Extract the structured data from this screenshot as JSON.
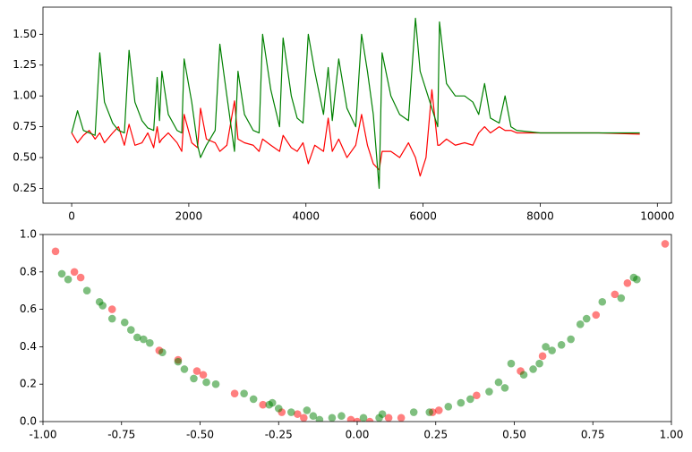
{
  "chart_data": [
    {
      "type": "line",
      "x": [
        0,
        100,
        200,
        300,
        400,
        480,
        560,
        700,
        800,
        900,
        980,
        1080,
        1200,
        1300,
        1400,
        1460,
        1500,
        1540,
        1650,
        1800,
        1880,
        1920,
        2050,
        2150,
        2200,
        2300,
        2450,
        2530,
        2650,
        2780,
        2840,
        2950,
        3100,
        3200,
        3260,
        3400,
        3550,
        3610,
        3750,
        3850,
        3950,
        4040,
        4150,
        4300,
        4380,
        4450,
        4560,
        4700,
        4850,
        4950,
        5050,
        5150,
        5250,
        5300,
        5450,
        5600,
        5750,
        5870,
        5950,
        6050,
        6150,
        6250,
        6280,
        6400,
        6550,
        6710,
        6850,
        6950,
        7050,
        7150,
        7300,
        7400,
        7500,
        7600,
        8000,
        9000,
        9700
      ],
      "series": [
        {
          "color": "#ff0000",
          "values": [
            0.7,
            0.62,
            0.68,
            0.72,
            0.65,
            0.7,
            0.62,
            0.7,
            0.75,
            0.6,
            0.77,
            0.6,
            0.62,
            0.7,
            0.58,
            0.75,
            0.62,
            0.65,
            0.7,
            0.62,
            0.55,
            0.85,
            0.62,
            0.58,
            0.9,
            0.65,
            0.62,
            0.55,
            0.6,
            0.96,
            0.65,
            0.62,
            0.6,
            0.55,
            0.65,
            0.6,
            0.55,
            0.68,
            0.58,
            0.55,
            0.62,
            0.45,
            0.6,
            0.55,
            0.82,
            0.55,
            0.65,
            0.5,
            0.6,
            0.85,
            0.6,
            0.45,
            0.4,
            0.55,
            0.55,
            0.5,
            0.62,
            0.5,
            0.35,
            0.5,
            1.05,
            0.6,
            0.6,
            0.65,
            0.6,
            0.62,
            0.6,
            0.7,
            0.75,
            0.7,
            0.75,
            0.72,
            0.72,
            0.7,
            0.7,
            0.7,
            0.69
          ]
        },
        {
          "color": "#008000",
          "values": [
            0.7,
            0.88,
            0.72,
            0.7,
            0.68,
            1.35,
            0.95,
            0.78,
            0.72,
            0.7,
            1.37,
            0.95,
            0.8,
            0.74,
            0.72,
            1.15,
            0.8,
            1.2,
            0.85,
            0.72,
            0.7,
            1.3,
            0.95,
            0.6,
            0.5,
            0.6,
            0.72,
            1.42,
            1.0,
            0.55,
            1.2,
            0.85,
            0.72,
            0.7,
            1.5,
            1.05,
            0.75,
            1.47,
            1.0,
            0.82,
            0.78,
            1.5,
            1.2,
            0.85,
            1.23,
            0.8,
            1.3,
            0.9,
            0.75,
            1.5,
            1.2,
            0.85,
            0.25,
            1.35,
            1.0,
            0.85,
            0.8,
            1.63,
            1.2,
            1.05,
            0.9,
            0.75,
            1.6,
            1.1,
            1.0,
            1.0,
            0.95,
            0.85,
            1.1,
            0.82,
            0.78,
            1.0,
            0.75,
            0.72,
            0.7,
            0.7,
            0.7
          ]
        }
      ],
      "xlim": [
        -490,
        10240
      ],
      "ylim": [
        0.13,
        1.72
      ],
      "xticks": [
        0,
        2000,
        4000,
        6000,
        8000,
        10000
      ],
      "yticks": [
        0.25,
        {
          "value": 0.5,
          "label": "0.50"
        },
        0.75,
        {
          "value": 1,
          "label": "1.00"
        },
        1.25,
        {
          "value": 1.5,
          "label": "1.50"
        }
      ]
    },
    {
      "type": "scatter",
      "series": [
        {
          "color": "#ff0000",
          "x": [
            -0.96,
            -0.9,
            -0.88,
            -0.78,
            -0.63,
            -0.57,
            -0.51,
            -0.49,
            -0.39,
            -0.3,
            -0.24,
            -0.19,
            -0.17,
            -0.02,
            0.0,
            0.04,
            0.1,
            0.14,
            0.24,
            0.26,
            0.38,
            0.52,
            0.59,
            0.76,
            0.82,
            0.86,
            0.98
          ],
          "values": [
            0.91,
            0.8,
            0.77,
            0.6,
            0.38,
            0.33,
            0.27,
            0.25,
            0.15,
            0.09,
            0.05,
            0.04,
            0.02,
            0.01,
            0.0,
            0.0,
            0.02,
            0.02,
            0.05,
            0.06,
            0.14,
            0.27,
            0.35,
            0.57,
            0.68,
            0.74,
            0.95
          ]
        },
        {
          "color": "#008000",
          "x": [
            -0.94,
            -0.92,
            -0.86,
            -0.82,
            -0.81,
            -0.78,
            -0.74,
            -0.72,
            -0.7,
            -0.68,
            -0.66,
            -0.62,
            -0.57,
            -0.55,
            -0.52,
            -0.48,
            -0.45,
            -0.36,
            -0.33,
            -0.28,
            -0.27,
            -0.25,
            -0.21,
            -0.16,
            -0.14,
            -0.12,
            -0.08,
            -0.05,
            0.02,
            0.07,
            0.08,
            0.18,
            0.23,
            0.29,
            0.33,
            0.36,
            0.42,
            0.45,
            0.47,
            0.49,
            0.53,
            0.56,
            0.58,
            0.6,
            0.62,
            0.65,
            0.68,
            0.71,
            0.73,
            0.78,
            0.84,
            0.88,
            0.89
          ],
          "values": [
            0.79,
            0.76,
            0.7,
            0.64,
            0.62,
            0.55,
            0.53,
            0.49,
            0.45,
            0.44,
            0.42,
            0.37,
            0.32,
            0.28,
            0.23,
            0.21,
            0.2,
            0.15,
            0.12,
            0.09,
            0.1,
            0.07,
            0.05,
            0.06,
            0.03,
            0.01,
            0.02,
            0.03,
            0.02,
            0.02,
            0.04,
            0.05,
            0.05,
            0.08,
            0.1,
            0.12,
            0.16,
            0.21,
            0.18,
            0.31,
            0.25,
            0.28,
            0.31,
            0.4,
            0.38,
            0.41,
            0.44,
            0.52,
            0.55,
            0.64,
            0.66,
            0.77,
            0.76
          ]
        }
      ],
      "xlim": [
        -1,
        1
      ],
      "ylim": [
        0,
        1
      ],
      "xticks": [
        {
          "value": -1,
          "label": "-1.00"
        },
        -0.75,
        {
          "value": -0.5,
          "label": "-0.50"
        },
        -0.25,
        {
          "value": 0,
          "label": "0.00"
        },
        0.25,
        {
          "value": 0.5,
          "label": "0.50"
        },
        0.75,
        {
          "value": 1,
          "label": "1.00"
        }
      ],
      "yticks": [
        {
          "value": 0,
          "label": "0.0"
        },
        0.2,
        0.4,
        0.6,
        0.8,
        {
          "value": 1,
          "label": "1.0"
        }
      ]
    }
  ]
}
